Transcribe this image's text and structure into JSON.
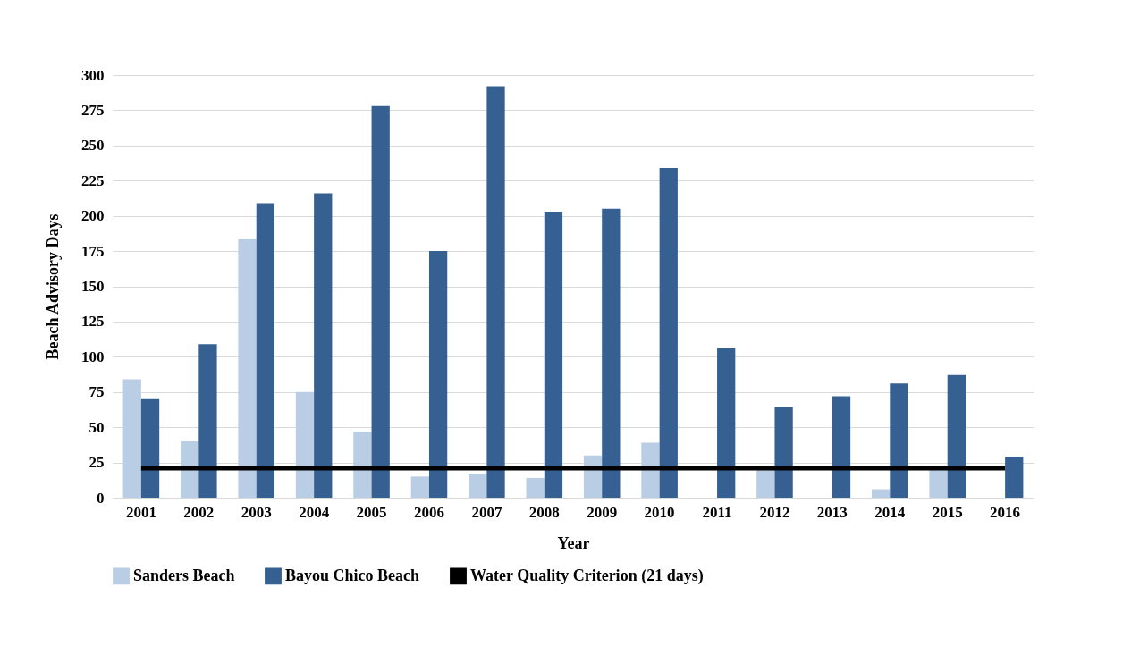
{
  "chart_data": {
    "type": "bar",
    "xlabel": "Year",
    "ylabel": "Beach Advisory Days",
    "categories": [
      "2001",
      "2002",
      "2003",
      "2004",
      "2005",
      "2006",
      "2007",
      "2008",
      "2009",
      "2010",
      "2011",
      "2012",
      "2013",
      "2014",
      "2015",
      "2016"
    ],
    "series": [
      {
        "name": "Sanders Beach",
        "color": "#b9cde5",
        "values": [
          84,
          40,
          184,
          75,
          47,
          15,
          17,
          14,
          30,
          39,
          0,
          20,
          0,
          6,
          20,
          0
        ]
      },
      {
        "name": "Bayou Chico Beach",
        "color": "#376092",
        "values": [
          70,
          109,
          209,
          216,
          278,
          175,
          292,
          203,
          205,
          234,
          106,
          64,
          72,
          81,
          87,
          29
        ]
      },
      {
        "name": "Water Quality Criterion (21 days)",
        "type": "line",
        "color": "#000000",
        "values": [
          21,
          21,
          21,
          21,
          21,
          21,
          21,
          21,
          21,
          21,
          21,
          21,
          21,
          21,
          21,
          21
        ]
      }
    ],
    "ylim": [
      0,
      300
    ],
    "yticks": [
      0,
      25,
      50,
      75,
      100,
      125,
      150,
      175,
      200,
      225,
      250,
      275,
      300
    ],
    "grid": "y",
    "legend": "bottom"
  }
}
